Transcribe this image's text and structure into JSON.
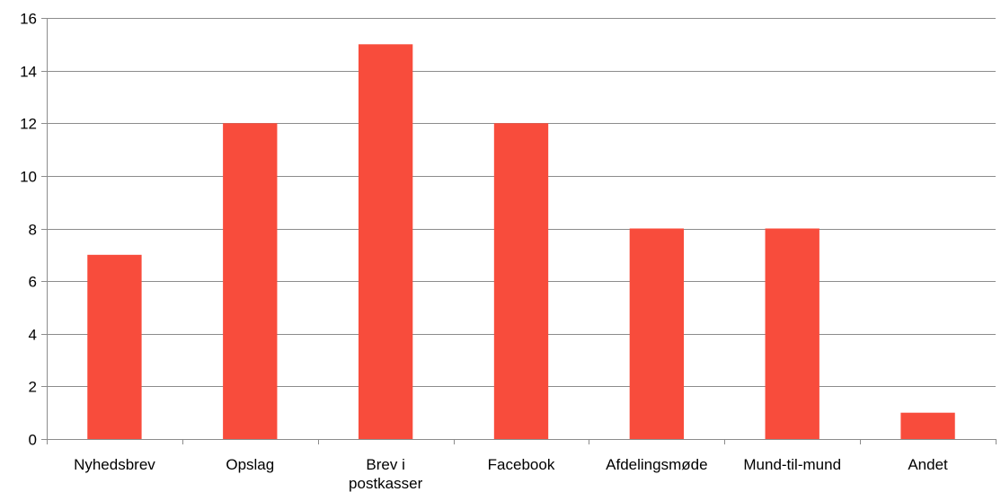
{
  "chart_data": {
    "type": "bar",
    "title": "",
    "xlabel": "",
    "ylabel": "",
    "categories": [
      "Nyhedsbrev",
      "Opslag",
      "Brev i postkasser",
      "Facebook",
      "Afdelingsmøde",
      "Mund-til-mund",
      "Andet"
    ],
    "category_lines": [
      [
        "Nyhedsbrev"
      ],
      [
        "Opslag"
      ],
      [
        "Brev i",
        "postkasser"
      ],
      [
        "Facebook"
      ],
      [
        "Afdelingsmøde"
      ],
      [
        "Mund-til-mund"
      ],
      [
        "Andet"
      ]
    ],
    "values": [
      7,
      12,
      15,
      12,
      8,
      8,
      1
    ],
    "ylim": [
      0,
      16
    ],
    "yticks": [
      0,
      2,
      4,
      6,
      8,
      10,
      12,
      14,
      16
    ],
    "grid": true,
    "legend": "none",
    "colors": {
      "bar": "#F84C3C",
      "grid": "#8C8C8C",
      "axis": "#8C8C8C"
    }
  }
}
